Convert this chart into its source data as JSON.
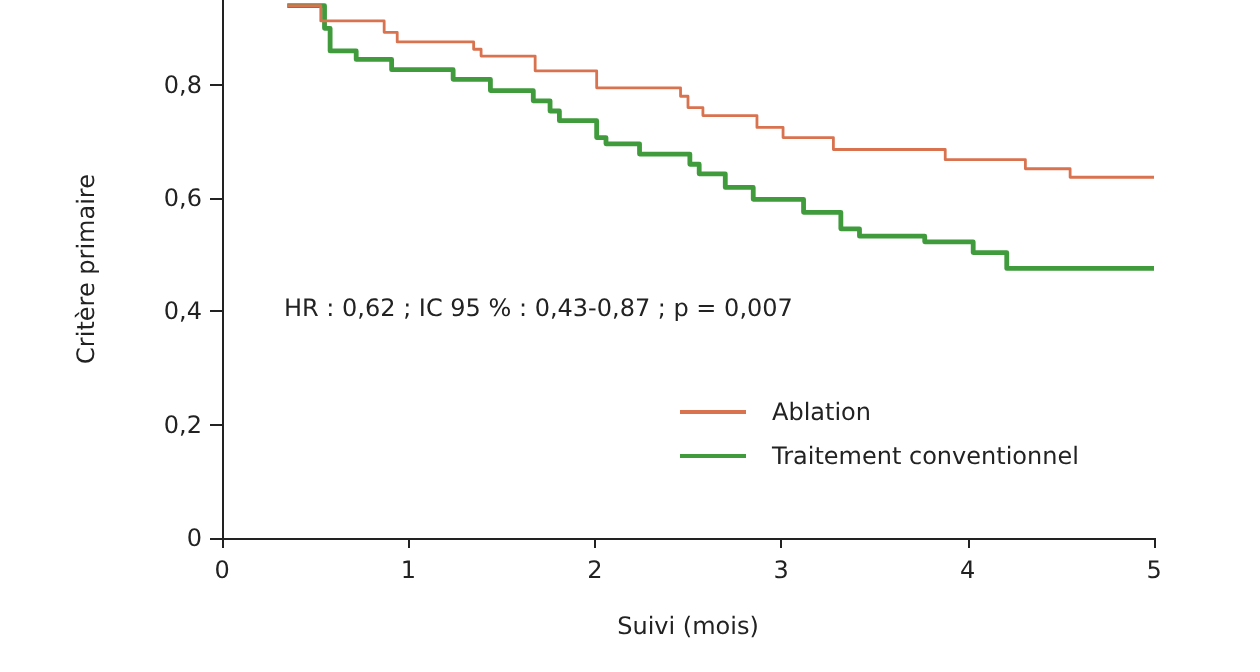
{
  "chart_data": {
    "type": "step",
    "xlabel": "Suivi (mois)",
    "ylabel": "Critère primaire",
    "annotations": [
      "HR : 0,62 ; IC 95 % : 0,43-0,87 ; p = 0,007"
    ],
    "xlim": [
      0,
      5
    ],
    "xticks": [
      0,
      1,
      2,
      3,
      4,
      5
    ],
    "ylim": [
      0,
      0.95
    ],
    "yticks": [
      0,
      {
        "value": 0.2,
        "label": "0,2"
      },
      {
        "value": 0.4,
        "label": "0,4"
      },
      {
        "value": 0.6,
        "label": "0,6"
      },
      {
        "value": 0.8,
        "label": "0,8"
      }
    ],
    "grid": false,
    "legend": "bottom right",
    "marker": "none",
    "line_style": "solid",
    "series": [
      {
        "name": "Ablation",
        "color": "#d9734f",
        "x": [
          0.35,
          0.53,
          0.87,
          0.94,
          1.35,
          1.39,
          1.68,
          2.01,
          2.46,
          2.5,
          2.58,
          2.87,
          3.01,
          3.28,
          3.88,
          4.31,
          4.55,
          5.0
        ],
        "values": [
          0.94,
          0.913,
          0.893,
          0.876,
          0.863,
          0.851,
          0.825,
          0.795,
          0.78,
          0.76,
          0.746,
          0.725,
          0.707,
          0.686,
          0.668,
          0.652,
          0.637,
          0.637
        ]
      },
      {
        "name": "Traitement conventionnel",
        "color": "#3f9b3c",
        "x": [
          0.35,
          0.55,
          0.58,
          0.72,
          0.91,
          1.24,
          1.44,
          1.67,
          1.76,
          1.81,
          2.01,
          2.06,
          2.24,
          2.51,
          2.56,
          2.7,
          2.85,
          3.12,
          3.32,
          3.42,
          3.77,
          4.03,
          4.21,
          5.0
        ],
        "values": [
          0.94,
          0.9,
          0.86,
          0.845,
          0.827,
          0.81,
          0.79,
          0.772,
          0.754,
          0.737,
          0.707,
          0.696,
          0.678,
          0.66,
          0.643,
          0.619,
          0.598,
          0.575,
          0.546,
          0.533,
          0.523,
          0.504,
          0.476,
          0.476
        ]
      }
    ]
  }
}
